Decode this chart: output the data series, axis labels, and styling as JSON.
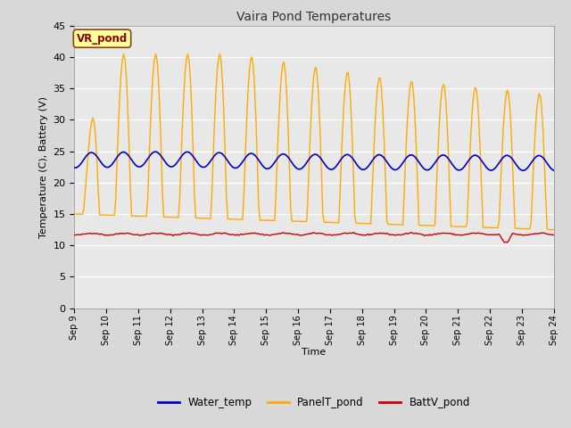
{
  "title": "Vaira Pond Temperatures",
  "xlabel": "Time",
  "ylabel": "Temperature (C), Battery (V)",
  "annotation": "VR_pond",
  "ylim": [
    0,
    45
  ],
  "yticks": [
    0,
    5,
    10,
    15,
    20,
    25,
    30,
    35,
    40,
    45
  ],
  "x_tick_labels": [
    "Sep 9",
    "Sep 10",
    "Sep 11",
    "Sep 12",
    "Sep 13",
    "Sep 14",
    "Sep 15",
    "Sep 16",
    "Sep 17",
    "Sep 18",
    "Sep 19",
    "Sep 20",
    "Sep 21",
    "Sep 22",
    "Sep 23",
    "Sep 24"
  ],
  "water_color": "#0000cc",
  "panel_color": "#ffaa00",
  "batt_color": "#cc0000",
  "bg_color": "#d8d8d8",
  "plot_bg": "#e8e8e8",
  "grid_color": "#ffffff",
  "legend_labels": [
    "Water_temp",
    "PanelT_pond",
    "BattV_pond"
  ]
}
